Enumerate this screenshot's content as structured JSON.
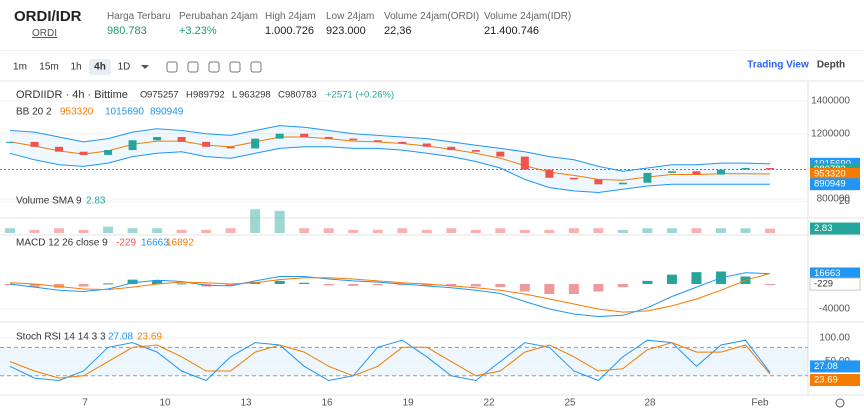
{
  "header": {
    "pair": "ORDI/IDR",
    "coin": "ORDI",
    "stats": [
      {
        "label": "Harga Terbaru",
        "value": "980.783"
      },
      {
        "label": "Perubahan 24jam",
        "value": "+3.23%"
      },
      {
        "label": "High 24jam",
        "value": "1.000.726"
      },
      {
        "label": "Low 24jam",
        "value": "923.000"
      },
      {
        "label": "Volume 24jam(ORDI)",
        "value": "22,36"
      },
      {
        "label": "Volume 24jam(IDR)",
        "value": "21.400.746"
      }
    ]
  },
  "toolbar": {
    "intervals": [
      "1m",
      "15m",
      "1h",
      "4h",
      "1D"
    ],
    "views": [
      "Trading View",
      "Depth"
    ]
  },
  "price": {
    "title": "ORDIIDR · 4h · Bittime",
    "ohlc": [
      {
        "key": "O",
        "value": 975257
      },
      {
        "key": "H",
        "value": 989792
      },
      {
        "key": "L",
        "value": 963298
      },
      {
        "key": "C",
        "value": 980783
      }
    ],
    "change": "+2571 (+0.26%)",
    "bb_label": "BB 20 2",
    "bb_values": [
      953320,
      1015690,
      890949
    ],
    "ylim": [
      1480000,
      690000
    ],
    "yticks": [
      {
        "value": 1400000,
        "label": "1400000"
      },
      {
        "value": 1200000,
        "label": "1200000"
      },
      {
        "value": 800000,
        "label": "800000"
      }
    ],
    "tags": [
      1015690,
      980783,
      953320,
      890949
    ],
    "close": [
      1150000,
      1120000,
      1090000,
      1070000,
      1100000,
      1160000,
      1180000,
      1150000,
      1120000,
      1110000,
      1170000,
      1200000,
      1180000,
      1170000,
      1160000,
      1150000,
      1140000,
      1120000,
      1100000,
      1090000,
      1060000,
      980000,
      930000,
      920000,
      890000,
      900000,
      960000,
      970000,
      950000,
      980000,
      990000,
      980783
    ],
    "upper": [
      1220000,
      1210000,
      1180000,
      1150000,
      1170000,
      1210000,
      1230000,
      1220000,
      1200000,
      1190000,
      1220000,
      1250000,
      1240000,
      1220000,
      1200000,
      1190000,
      1180000,
      1170000,
      1150000,
      1130000,
      1110000,
      1090000,
      1060000,
      1040000,
      1000000,
      970000,
      990000,
      1010000,
      1010000,
      1020000,
      1020000,
      1015690
    ],
    "middle": [
      1150000,
      1125000,
      1095000,
      1075000,
      1095000,
      1135000,
      1155000,
      1155000,
      1130000,
      1120000,
      1150000,
      1180000,
      1180000,
      1170000,
      1155000,
      1150000,
      1140000,
      1125000,
      1105000,
      1080000,
      1050000,
      1005000,
      965000,
      945000,
      920000,
      915000,
      935000,
      950000,
      950000,
      955000,
      955000,
      953320
    ],
    "lower": [
      1080000,
      1040000,
      1010000,
      1000000,
      1020000,
      1060000,
      1080000,
      1090000,
      1060000,
      1050000,
      1080000,
      1110000,
      1120000,
      1120000,
      1110000,
      1110000,
      1100000,
      1080000,
      1060000,
      1030000,
      990000,
      920000,
      870000,
      850000,
      840000,
      860000,
      880000,
      890000,
      890000,
      890000,
      890000,
      890949
    ]
  },
  "volume": {
    "label": "Volume SMA 9",
    "value": 2.83,
    "ylim": [
      0,
      24
    ],
    "yticks": [
      20
    ],
    "values": [
      3,
      2,
      3,
      2,
      4,
      3,
      3,
      2,
      2,
      3,
      15,
      14,
      3,
      3,
      2,
      2,
      3,
      2,
      3,
      2,
      3,
      2,
      2,
      3,
      3,
      2,
      3,
      3,
      3,
      3,
      3,
      2.83
    ]
  },
  "macd": {
    "label": "MACD 12 26 close 9",
    "values": [
      -229,
      16663,
      16892
    ],
    "ylim": [
      73600,
      -57600
    ],
    "yticks": [
      -40000
    ],
    "macd": [
      0,
      -5000,
      -10000,
      -12000,
      -8000,
      2000,
      6000,
      4000,
      -2000,
      -3000,
      5000,
      12000,
      12000,
      8000,
      5000,
      3000,
      0,
      -3000,
      -6000,
      -10000,
      -15000,
      -28000,
      -40000,
      -48000,
      -52000,
      -50000,
      -38000,
      -20000,
      -5000,
      10000,
      18000,
      16663
    ],
    "signal": [
      2000,
      0,
      -4000,
      -8000,
      -9000,
      -5000,
      0,
      3000,
      2000,
      0,
      2000,
      7000,
      10000,
      10000,
      8000,
      5000,
      2000,
      0,
      -3000,
      -6000,
      -10000,
      -16000,
      -24000,
      -32000,
      -40000,
      -45000,
      -43000,
      -35000,
      -24000,
      -10000,
      6000,
      16892
    ],
    "hist": [
      -2000,
      -5000,
      -6000,
      -4000,
      1000,
      7000,
      6000,
      1000,
      -4000,
      -3000,
      3000,
      5000,
      2000,
      -2000,
      -3000,
      -2000,
      -2000,
      -3000,
      -3000,
      -4000,
      -5000,
      -12000,
      -16000,
      -16000,
      -12000,
      -5000,
      5000,
      15000,
      19000,
      20000,
      12000,
      -229
    ]
  },
  "stoch": {
    "label": "Stoch RSI 14 14 3 3",
    "values": [
      27.08,
      23.69
    ],
    "ylim": [
      125,
      -10
    ],
    "yticks": [
      {
        "value": 100,
        "label": "100.00"
      },
      {
        "value": 50,
        "label": "50.00"
      }
    ],
    "bands": [
      80,
      20
    ],
    "k": [
      40,
      15,
      10,
      30,
      80,
      90,
      70,
      30,
      10,
      60,
      90,
      85,
      40,
      10,
      20,
      80,
      95,
      60,
      20,
      10,
      50,
      90,
      80,
      30,
      10,
      60,
      95,
      90,
      40,
      85,
      95,
      27.08
    ],
    "d": [
      50,
      30,
      15,
      20,
      50,
      80,
      85,
      60,
      30,
      30,
      70,
      85,
      70,
      40,
      20,
      40,
      80,
      80,
      50,
      20,
      30,
      70,
      85,
      60,
      30,
      35,
      75,
      90,
      70,
      70,
      85,
      23.69
    ]
  },
  "x_labels": [
    "7",
    "10",
    "13",
    "16",
    "19",
    "22",
    "25",
    "28",
    "Feb"
  ]
}
